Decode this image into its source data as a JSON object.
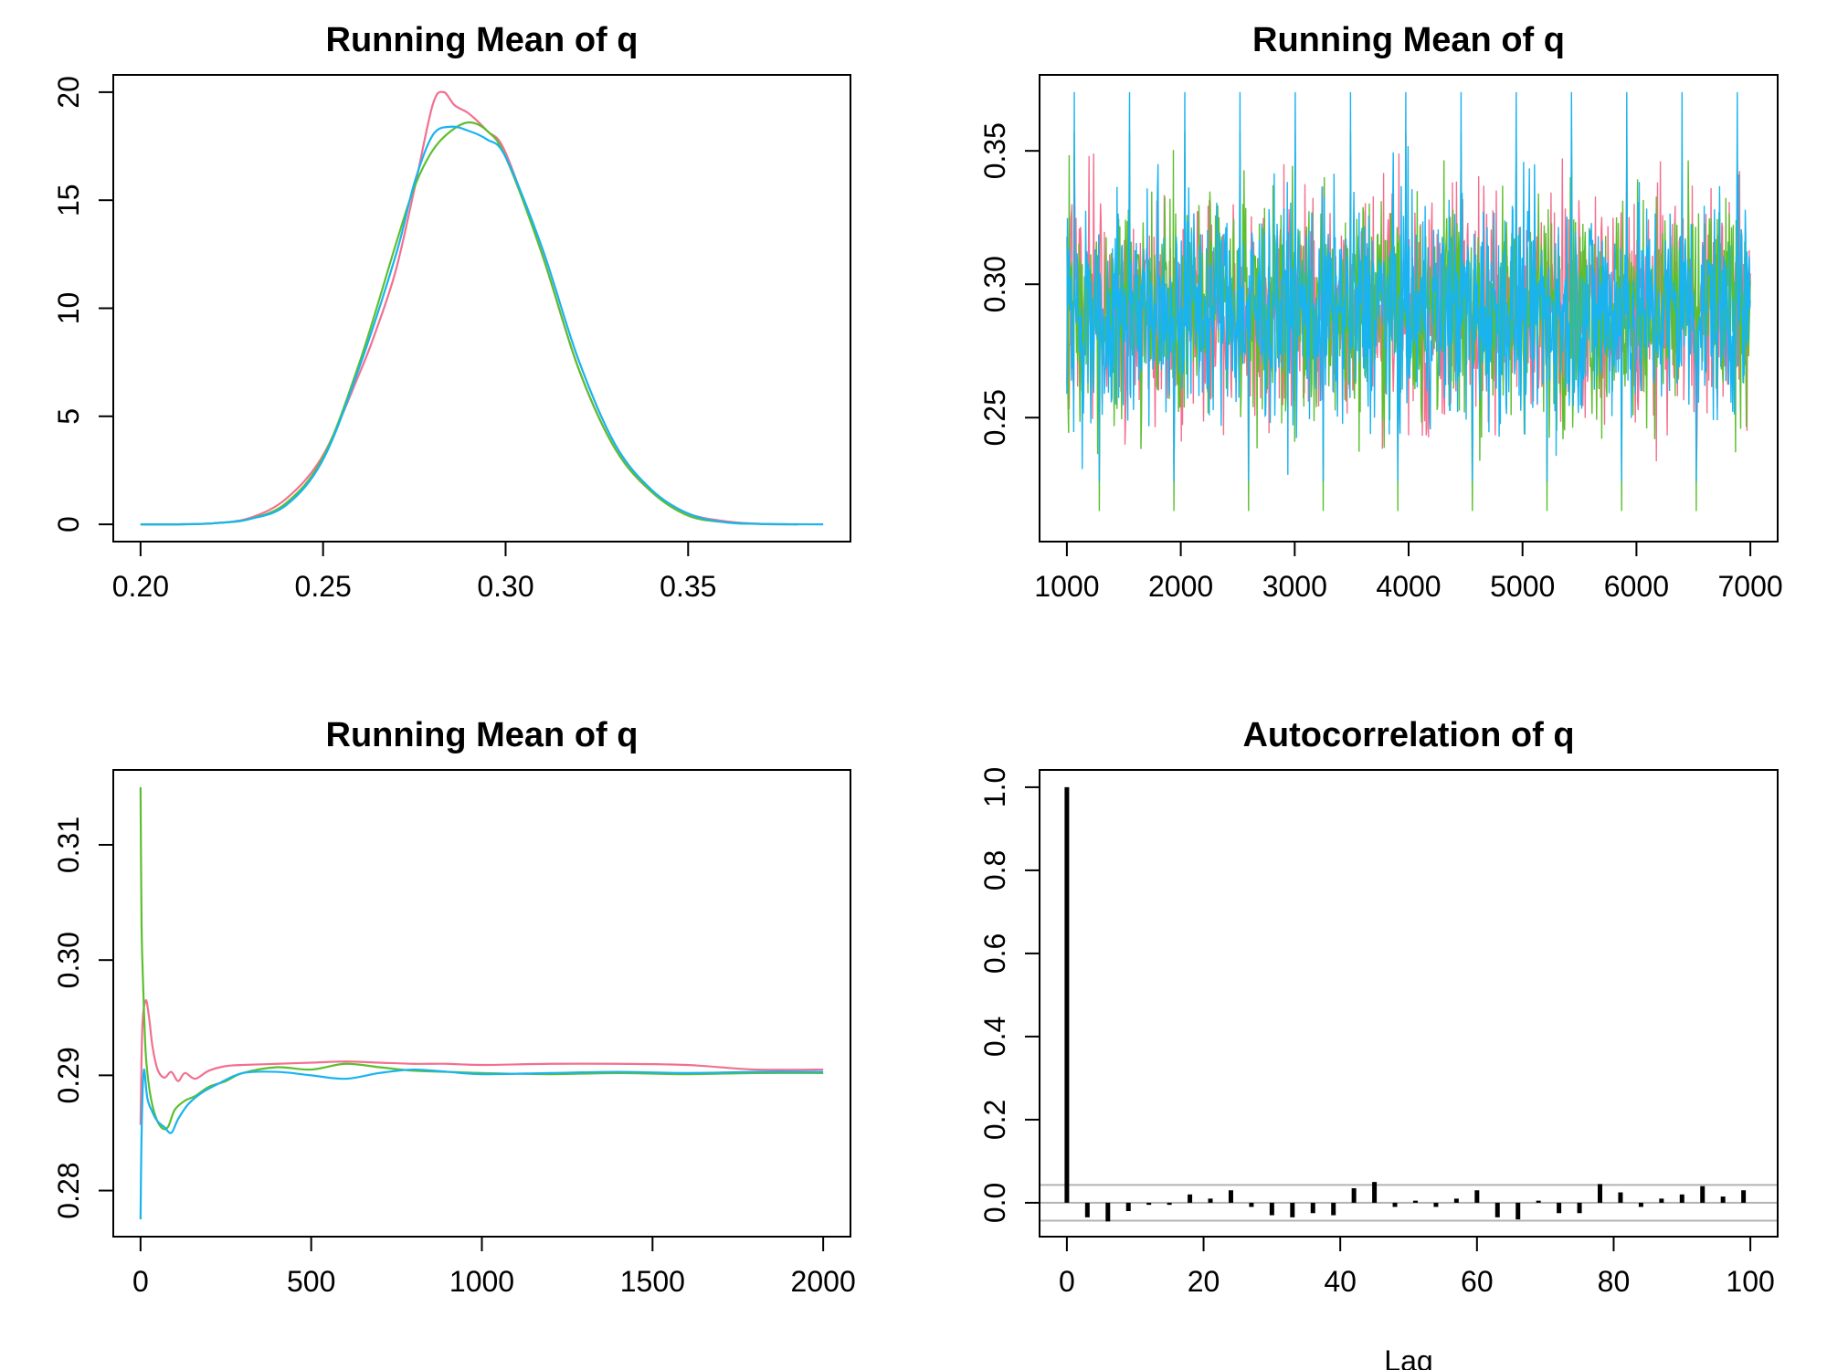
{
  "colors": {
    "chain1": "#F2708F",
    "chain2": "#5CBF2E",
    "chain3": "#19B3F0",
    "bar": "#000000",
    "band": "#B3B3B3"
  },
  "chart_data": [
    {
      "type": "line",
      "panel": "density",
      "title": "Running Mean of q",
      "xlabel": "",
      "ylabel": "",
      "xlim": [
        0.2,
        0.387
      ],
      "ylim": [
        0,
        20
      ],
      "xticks": [
        "0.20",
        "0.25",
        "0.30",
        "0.35"
      ],
      "yticks": [
        "0",
        "5",
        "10",
        "15",
        "20"
      ],
      "series": [
        {
          "x": [
            0.2,
            0.21,
            0.22,
            0.23,
            0.24,
            0.25,
            0.26,
            0.265,
            0.27,
            0.275,
            0.28,
            0.283,
            0.286,
            0.29,
            0.295,
            0.3,
            0.31,
            0.32,
            0.33,
            0.34,
            0.35,
            0.36,
            0.37,
            0.38
          ],
          "values": [
            0,
            0,
            0.05,
            0.3,
            1.2,
            3.2,
            7.0,
            9.2,
            11.8,
            15.5,
            19.4,
            20.0,
            19.4,
            19.0,
            18.2,
            17.2,
            12.5,
            7.2,
            3.5,
            1.5,
            0.5,
            0.15,
            0.02,
            0
          ]
        },
        {
          "x": [
            0.2,
            0.21,
            0.22,
            0.23,
            0.24,
            0.25,
            0.26,
            0.27,
            0.275,
            0.28,
            0.285,
            0.29,
            0.295,
            0.3,
            0.31,
            0.32,
            0.33,
            0.34,
            0.35,
            0.36,
            0.37,
            0.38
          ],
          "values": [
            0,
            0,
            0.05,
            0.25,
            1.0,
            3.1,
            7.5,
            13.0,
            15.6,
            17.3,
            18.2,
            18.6,
            18.2,
            17.0,
            12.5,
            7.2,
            3.5,
            1.5,
            0.4,
            0.1,
            0.02,
            0
          ]
        },
        {
          "x": [
            0.2,
            0.21,
            0.22,
            0.23,
            0.24,
            0.25,
            0.26,
            0.27,
            0.275,
            0.28,
            0.285,
            0.29,
            0.295,
            0.3,
            0.31,
            0.32,
            0.33,
            0.34,
            0.35,
            0.36,
            0.37,
            0.387
          ],
          "values": [
            0,
            0,
            0.05,
            0.25,
            0.9,
            3.0,
            7.3,
            12.5,
            15.8,
            18.0,
            18.4,
            18.2,
            17.8,
            17.0,
            12.8,
            7.6,
            3.7,
            1.6,
            0.5,
            0.1,
            0.02,
            0
          ]
        }
      ]
    },
    {
      "type": "line",
      "panel": "trace",
      "title": "Running Mean of q",
      "xlabel": "",
      "ylabel": "",
      "xlim": [
        1000,
        7000
      ],
      "ylim": [
        0.21,
        0.37
      ],
      "xticks": [
        "1000",
        "2000",
        "3000",
        "4000",
        "5000",
        "6000",
        "7000"
      ],
      "yticks": [
        "0.25",
        "0.30",
        "0.35"
      ],
      "iterations": 6000,
      "series_summary": [
        {
          "mean": 0.2905,
          "sd": 0.0205,
          "min": 0.232,
          "max": 0.349
        },
        {
          "mean": 0.2905,
          "sd": 0.0205,
          "min": 0.215,
          "max": 0.357
        },
        {
          "mean": 0.2905,
          "sd": 0.0205,
          "min": 0.226,
          "max": 0.372
        }
      ]
    },
    {
      "type": "line",
      "panel": "running-mean",
      "title": "Running Mean of q",
      "xlabel": "",
      "ylabel": "",
      "xlim": [
        0,
        2000
      ],
      "ylim": [
        0.2775,
        0.315
      ],
      "xticks": [
        "0",
        "500",
        "1000",
        "1500",
        "2000"
      ],
      "yticks": [
        "0.28",
        "0.29",
        "0.30",
        "0.31"
      ],
      "series": [
        {
          "x": [
            0,
            5,
            15,
            25,
            35,
            50,
            70,
            90,
            110,
            130,
            160,
            200,
            250,
            300,
            400,
            500,
            600,
            700,
            800,
            900,
            1000,
            1200,
            1400,
            1600,
            1800,
            2000
          ],
          "values": [
            0.2857,
            0.294,
            0.2965,
            0.295,
            0.2925,
            0.2905,
            0.2898,
            0.2903,
            0.2895,
            0.2902,
            0.2897,
            0.2904,
            0.2908,
            0.2909,
            0.291,
            0.2911,
            0.2912,
            0.2911,
            0.291,
            0.291,
            0.2909,
            0.291,
            0.291,
            0.2909,
            0.2905,
            0.2905
          ]
        },
        {
          "x": [
            0,
            3,
            8,
            15,
            25,
            40,
            60,
            80,
            100,
            130,
            160,
            200,
            250,
            300,
            400,
            500,
            600,
            700,
            800,
            900,
            1000,
            1200,
            1400,
            1600,
            1800,
            2000
          ],
          "values": [
            0.315,
            0.303,
            0.2975,
            0.292,
            0.289,
            0.2868,
            0.2855,
            0.2855,
            0.287,
            0.2878,
            0.2882,
            0.289,
            0.2895,
            0.2902,
            0.2907,
            0.2905,
            0.291,
            0.2907,
            0.2904,
            0.2903,
            0.2902,
            0.2901,
            0.2902,
            0.2901,
            0.2902,
            0.2902
          ]
        },
        {
          "x": [
            0,
            2,
            5,
            10,
            20,
            35,
            50,
            70,
            90,
            110,
            140,
            180,
            230,
            300,
            400,
            500,
            600,
            700,
            800,
            900,
            1000,
            1200,
            1400,
            1600,
            1800,
            2000
          ],
          "values": [
            0.2775,
            0.283,
            0.2875,
            0.2905,
            0.288,
            0.2868,
            0.286,
            0.2855,
            0.285,
            0.2862,
            0.2875,
            0.2885,
            0.2893,
            0.2902,
            0.2903,
            0.29,
            0.2897,
            0.2902,
            0.2905,
            0.2903,
            0.2901,
            0.2902,
            0.2903,
            0.2902,
            0.2903,
            0.2903
          ]
        }
      ]
    },
    {
      "type": "bar",
      "panel": "acf",
      "title": "Autocorrelation of q",
      "xlabel": "Lag",
      "ylabel": "",
      "xlim": [
        0,
        100
      ],
      "ylim": [
        -0.04,
        1.0
      ],
      "xticks": [
        "0",
        "20",
        "40",
        "60",
        "80",
        "100"
      ],
      "yticks": [
        "0.0",
        "0.2",
        "0.4",
        "0.6",
        "0.8",
        "1.0"
      ],
      "confidence_band": 0.043,
      "lags": [
        0,
        3,
        6,
        9,
        12,
        15,
        18,
        21,
        24,
        27,
        30,
        33,
        36,
        39,
        42,
        45,
        48,
        51,
        54,
        57,
        60,
        63,
        66,
        69,
        72,
        75,
        78,
        81,
        84,
        87,
        90,
        93,
        96,
        99
      ],
      "values": [
        1.0,
        -0.035,
        -0.045,
        -0.02,
        -0.005,
        -0.005,
        0.02,
        0.01,
        0.03,
        -0.01,
        -0.03,
        -0.035,
        -0.025,
        -0.03,
        0.035,
        0.05,
        -0.01,
        0.005,
        -0.01,
        0.01,
        0.03,
        -0.035,
        -0.04,
        0.005,
        -0.025,
        -0.025,
        0.045,
        0.025,
        -0.01,
        0.01,
        0.02,
        0.04,
        0.015,
        0.03
      ]
    }
  ]
}
